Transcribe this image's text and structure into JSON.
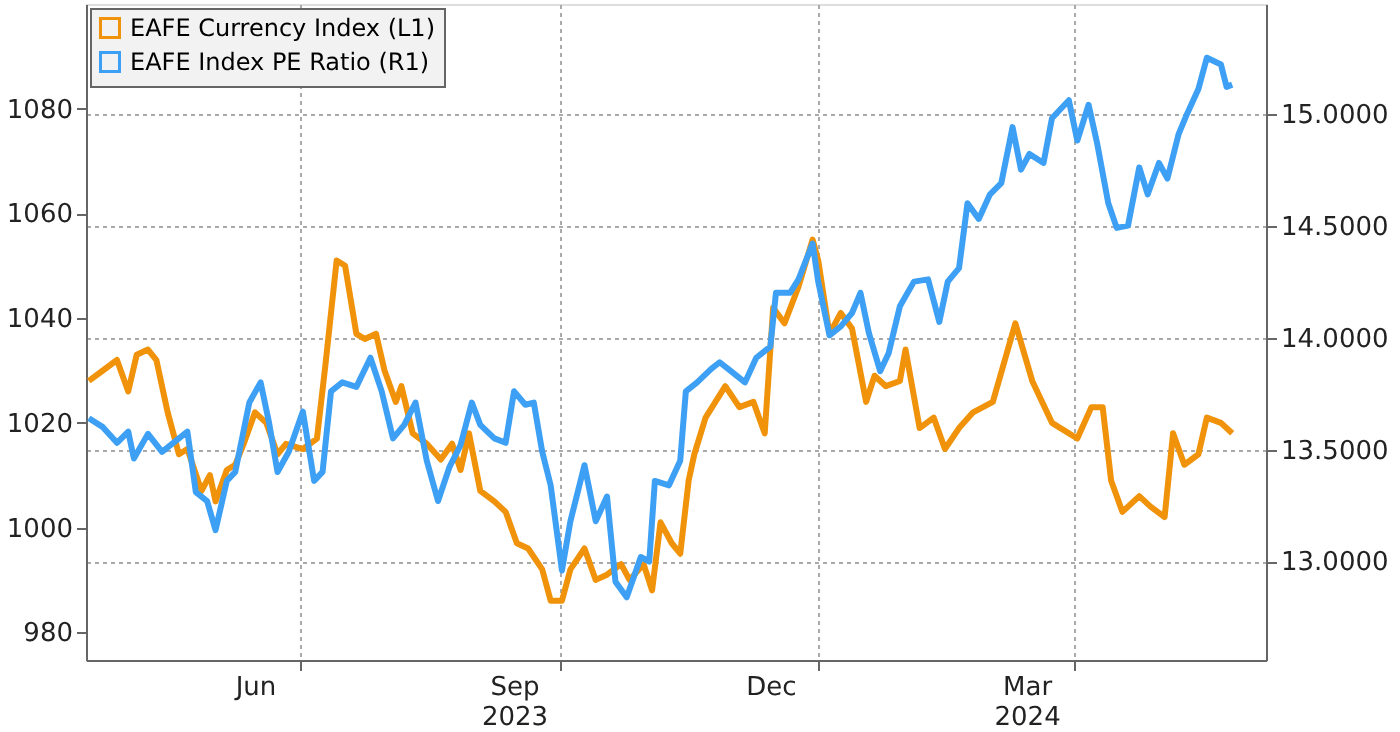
{
  "chart_data": {
    "type": "line",
    "legend": "top left",
    "grid": true,
    "line_style": "solid",
    "marker": "none",
    "xlim": [
      "2023-04-16",
      "2024-06-08"
    ],
    "xticks": [
      {
        "value": "2023-06-15",
        "label": "Jun"
      },
      {
        "value": "2023-07-01",
        "label": null
      },
      {
        "value": "2023-09-15",
        "label": "Sep\n2023"
      },
      {
        "value": "2023-10-01",
        "label": null
      },
      {
        "value": "2023-12-15",
        "label": "Dec"
      },
      {
        "value": "2024-01-01",
        "label": null
      },
      {
        "value": "2024-03-15",
        "label": "Mar\n2024"
      },
      {
        "value": "2024-04-01",
        "label": null
      }
    ],
    "ylim": [
      974.7,
      1100
    ],
    "yticks": [
      980,
      1000,
      1020,
      1040,
      1060,
      1080
    ],
    "y2lim": [
      12.56,
      15.49
    ],
    "y2ticks": [
      {
        "value": 13,
        "label": "13.0000"
      },
      {
        "value": 13.5,
        "label": "13.5000"
      },
      {
        "value": 14,
        "label": "14.0000"
      },
      {
        "value": 14.5,
        "label": "14.5000"
      },
      {
        "value": 15,
        "label": "15.0000"
      }
    ],
    "series": [
      {
        "name": "EAFE Currency Index (L1)",
        "color": "#f0920a",
        "axis": "y",
        "x": [
          "2023-04-17",
          "2023-04-22",
          "2023-04-27",
          "2023-05-01",
          "2023-05-04",
          "2023-05-08",
          "2023-05-11",
          "2023-05-15",
          "2023-05-19",
          "2023-05-22",
          "2023-05-27",
          "2023-05-30",
          "2023-06-01",
          "2023-06-05",
          "2023-06-08",
          "2023-06-11",
          "2023-06-15",
          "2023-06-19",
          "2023-06-23",
          "2023-06-26",
          "2023-07-02",
          "2023-07-07",
          "2023-07-10",
          "2023-07-14",
          "2023-07-17",
          "2023-07-21",
          "2023-07-24",
          "2023-07-28",
          "2023-07-31",
          "2023-08-04",
          "2023-08-06",
          "2023-08-10",
          "2023-08-15",
          "2023-08-20",
          "2023-08-24",
          "2023-08-27",
          "2023-08-30",
          "2023-09-03",
          "2023-09-08",
          "2023-09-12",
          "2023-09-16",
          "2023-09-20",
          "2023-09-25",
          "2023-09-28",
          "2023-10-02",
          "2023-10-05",
          "2023-10-10",
          "2023-10-14",
          "2023-10-18",
          "2023-10-23",
          "2023-10-26",
          "2023-10-31",
          "2023-11-03",
          "2023-11-06",
          "2023-11-10",
          "2023-11-13",
          "2023-11-16",
          "2023-11-18",
          "2023-11-22",
          "2023-11-29",
          "2023-12-04",
          "2023-12-09",
          "2023-12-13",
          "2023-12-16",
          "2023-12-20",
          "2023-12-25",
          "2023-12-30",
          "2024-01-01",
          "2024-01-05",
          "2024-01-09",
          "2024-01-13",
          "2024-01-18",
          "2024-01-21",
          "2024-01-25",
          "2024-01-30",
          "2024-02-01",
          "2024-02-06",
          "2024-02-11",
          "2024-02-15",
          "2024-02-20",
          "2024-02-25",
          "2024-03-03",
          "2024-03-11",
          "2024-03-17",
          "2024-03-24",
          "2024-04-02",
          "2024-04-07",
          "2024-04-11",
          "2024-04-14",
          "2024-04-18",
          "2024-04-24",
          "2024-04-28",
          "2024-05-03",
          "2024-05-06",
          "2024-05-10",
          "2024-05-15",
          "2024-05-18",
          "2024-05-23",
          "2024-05-27"
        ],
        "values": [
          1028,
          1030,
          1032,
          1026,
          1033,
          1034,
          1032,
          1022,
          1014,
          1015,
          1007,
          1010,
          1005,
          1011,
          1012,
          1016,
          1022,
          1020,
          1014,
          1016,
          1015,
          1017,
          1031,
          1051,
          1050,
          1037,
          1036,
          1037,
          1030,
          1024,
          1027,
          1018,
          1016,
          1013,
          1016,
          1011,
          1018,
          1007,
          1005,
          1003,
          997,
          996,
          992,
          986,
          986,
          992,
          996,
          990,
          991,
          993,
          990,
          993,
          988,
          1001,
          997,
          995,
          1009,
          1014,
          1021,
          1027,
          1023,
          1024,
          1018,
          1042,
          1039,
          1046,
          1055,
          1051,
          1037,
          1041,
          1038,
          1024,
          1029,
          1027,
          1028,
          1034,
          1019,
          1021,
          1015,
          1019,
          1022,
          1024,
          1039,
          1028,
          1020,
          1017,
          1023,
          1023,
          1009,
          1003,
          1006,
          1004,
          1002,
          1018,
          1012,
          1014,
          1021,
          1020,
          1018
        ]
      },
      {
        "name": "EAFE Index PE Ratio (R1)",
        "color": "#3da0f5",
        "axis": "y2",
        "x": [
          "2023-04-17",
          "2023-04-22",
          "2023-04-27",
          "2023-05-01",
          "2023-05-03",
          "2023-05-08",
          "2023-05-13",
          "2023-05-19",
          "2023-05-22",
          "2023-05-25",
          "2023-05-29",
          "2023-06-01",
          "2023-06-05",
          "2023-06-08",
          "2023-06-13",
          "2023-06-17",
          "2023-06-20",
          "2023-06-23",
          "2023-06-27",
          "2023-07-02",
          "2023-07-06",
          "2023-07-09",
          "2023-07-12",
          "2023-07-16",
          "2023-07-21",
          "2023-07-26",
          "2023-07-30",
          "2023-08-03",
          "2023-08-07",
          "2023-08-11",
          "2023-08-15",
          "2023-08-19",
          "2023-08-23",
          "2023-08-27",
          "2023-08-31",
          "2023-09-03",
          "2023-09-08",
          "2023-09-12",
          "2023-09-15",
          "2023-09-19",
          "2023-09-22",
          "2023-09-25",
          "2023-09-28",
          "2023-10-02",
          "2023-10-05",
          "2023-10-10",
          "2023-10-14",
          "2023-10-18",
          "2023-10-21",
          "2023-10-25",
          "2023-10-30",
          "2023-11-02",
          "2023-11-04",
          "2023-11-09",
          "2023-11-13",
          "2023-11-15",
          "2023-11-19",
          "2023-11-24",
          "2023-11-27",
          "2023-12-01",
          "2023-12-06",
          "2023-12-10",
          "2023-12-15",
          "2023-12-17",
          "2023-12-22",
          "2023-12-25",
          "2023-12-30",
          "2024-01-01",
          "2024-01-05",
          "2024-01-09",
          "2024-01-13",
          "2024-01-16",
          "2024-01-19",
          "2024-01-23",
          "2024-01-26",
          "2024-01-30",
          "2024-02-04",
          "2024-02-09",
          "2024-02-13",
          "2024-02-16",
          "2024-02-20",
          "2024-02-23",
          "2024-02-27",
          "2024-03-02",
          "2024-03-06",
          "2024-03-10",
          "2024-03-13",
          "2024-03-16",
          "2024-03-21",
          "2024-03-24",
          "2024-03-30",
          "2024-04-02",
          "2024-04-06",
          "2024-04-09",
          "2024-04-13",
          "2024-04-16",
          "2024-04-20",
          "2024-04-24",
          "2024-04-27",
          "2024-05-01",
          "2024-05-04",
          "2024-05-08",
          "2024-05-11",
          "2024-05-15",
          "2024-05-18",
          "2024-05-23",
          "2024-05-25",
          "2024-05-27"
        ],
        "values": [
          13.64,
          13.6,
          13.53,
          13.58,
          13.46,
          13.57,
          13.49,
          13.55,
          13.58,
          13.31,
          13.27,
          13.14,
          13.36,
          13.4,
          13.71,
          13.8,
          13.62,
          13.4,
          13.49,
          13.67,
          13.36,
          13.4,
          13.76,
          13.8,
          13.78,
          13.91,
          13.76,
          13.55,
          13.61,
          13.71,
          13.45,
          13.27,
          13.42,
          13.52,
          13.71,
          13.61,
          13.55,
          13.53,
          13.76,
          13.7,
          13.71,
          13.49,
          13.34,
          12.96,
          13.18,
          13.43,
          13.18,
          13.29,
          12.91,
          12.84,
          13.02,
          13.0,
          13.36,
          13.34,
          13.45,
          13.76,
          13.8,
          13.86,
          13.89,
          13.85,
          13.8,
          13.91,
          13.96,
          14.2,
          14.2,
          14.26,
          14.42,
          14.25,
          14.01,
          14.05,
          14.11,
          14.2,
          14.02,
          13.85,
          13.93,
          14.14,
          14.25,
          14.26,
          14.07,
          14.25,
          14.31,
          14.6,
          14.53,
          14.64,
          14.69,
          14.94,
          14.75,
          14.82,
          14.78,
          14.98,
          15.06,
          14.88,
          15.04,
          14.87,
          14.6,
          14.49,
          14.5,
          14.76,
          14.64,
          14.78,
          14.71,
          14.91,
          15.0,
          15.11,
          15.25,
          15.22,
          15.12,
          15.13
        ]
      }
    ]
  }
}
